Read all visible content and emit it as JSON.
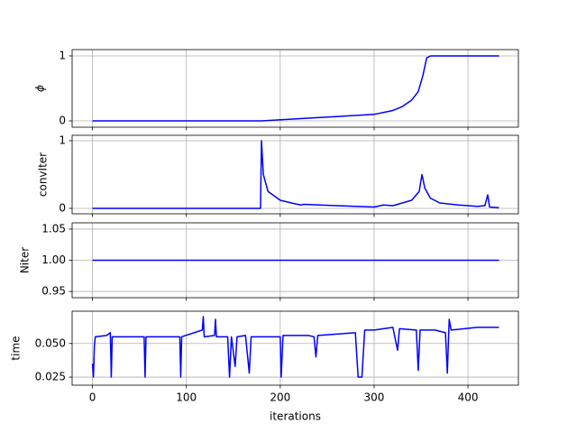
{
  "chart_data": [
    {
      "type": "line",
      "ylabel": "ϕ",
      "color": "#0000ff",
      "grid": true,
      "x": [
        0,
        100,
        180,
        240,
        300,
        320,
        330,
        340,
        347,
        352,
        356,
        360,
        400,
        433
      ],
      "values": [
        0,
        0,
        0,
        0.05,
        0.1,
        0.16,
        0.22,
        0.32,
        0.45,
        0.7,
        0.97,
        1.0,
        1.0,
        1.0
      ],
      "xlim": [
        -21.7,
        453.7
      ],
      "xticks": [
        0,
        100,
        200,
        300,
        400
      ],
      "ylim": [
        -0.097,
        1.097
      ],
      "yticks": [
        0,
        1
      ]
    },
    {
      "type": "line",
      "ylabel": "convIter",
      "color": "#0000ff",
      "grid": true,
      "x": [
        0,
        179,
        180,
        182,
        187,
        200,
        215,
        222,
        225,
        260,
        300,
        310,
        320,
        330,
        340,
        348,
        351,
        354,
        360,
        370,
        390,
        410,
        418,
        421,
        423,
        433
      ],
      "values": [
        0,
        0,
        1.0,
        0.5,
        0.25,
        0.12,
        0.07,
        0.05,
        0.06,
        0.04,
        0.02,
        0.05,
        0.04,
        0.08,
        0.12,
        0.25,
        0.5,
        0.3,
        0.15,
        0.08,
        0.05,
        0.03,
        0.04,
        0.2,
        0.02,
        0.01
      ],
      "xlim": [
        -21.7,
        453.7
      ],
      "xticks": [
        0,
        100,
        200,
        300,
        400
      ],
      "ylim": [
        -0.08,
        1.08
      ],
      "yticks": [
        0,
        1
      ]
    },
    {
      "type": "line",
      "ylabel": "Niter",
      "color": "#0000ff",
      "grid": true,
      "x": [
        0,
        433
      ],
      "values": [
        1,
        1
      ],
      "xlim": [
        -21.7,
        453.7
      ],
      "xticks": [
        0,
        100,
        200,
        300,
        400
      ],
      "ylim": [
        0.94,
        1.06
      ],
      "yticks": [
        {
          "value": 0.95,
          "label": "0.95"
        },
        {
          "value": 1.0,
          "label": "1.00"
        },
        {
          "value": 1.05,
          "label": "1.05"
        }
      ]
    },
    {
      "type": "line",
      "ylabel": "time",
      "xlabel": "iterations",
      "color": "#0000ff",
      "grid": true,
      "x": [
        0,
        1,
        2,
        3,
        15,
        19,
        20,
        21,
        55,
        56,
        57,
        93,
        94,
        95,
        117,
        118,
        119,
        130,
        131,
        132,
        144,
        146,
        148,
        152,
        154,
        163,
        167,
        169,
        200,
        201,
        203,
        230,
        236,
        238,
        240,
        280,
        283,
        287,
        290,
        300,
        320,
        325,
        327,
        345,
        347,
        349,
        365,
        376,
        378,
        380,
        382,
        410,
        433
      ],
      "values": [
        0.035,
        0.025,
        0.048,
        0.055,
        0.056,
        0.058,
        0.025,
        0.055,
        0.055,
        0.025,
        0.055,
        0.055,
        0.025,
        0.055,
        0.06,
        0.07,
        0.055,
        0.056,
        0.068,
        0.055,
        0.055,
        0.025,
        0.055,
        0.033,
        0.055,
        0.056,
        0.028,
        0.055,
        0.055,
        0.025,
        0.056,
        0.056,
        0.055,
        0.04,
        0.056,
        0.058,
        0.025,
        0.025,
        0.06,
        0.06,
        0.062,
        0.045,
        0.061,
        0.06,
        0.03,
        0.06,
        0.06,
        0.058,
        0.028,
        0.068,
        0.06,
        0.062,
        0.062
      ],
      "xlim": [
        -21.7,
        453.7
      ],
      "xticks": [
        0,
        100,
        200,
        300,
        400
      ],
      "ylim": [
        0.019,
        0.074
      ],
      "yticks": [
        {
          "value": 0.025,
          "label": "0.025"
        },
        {
          "value": 0.05,
          "label": "0.050"
        }
      ]
    }
  ]
}
